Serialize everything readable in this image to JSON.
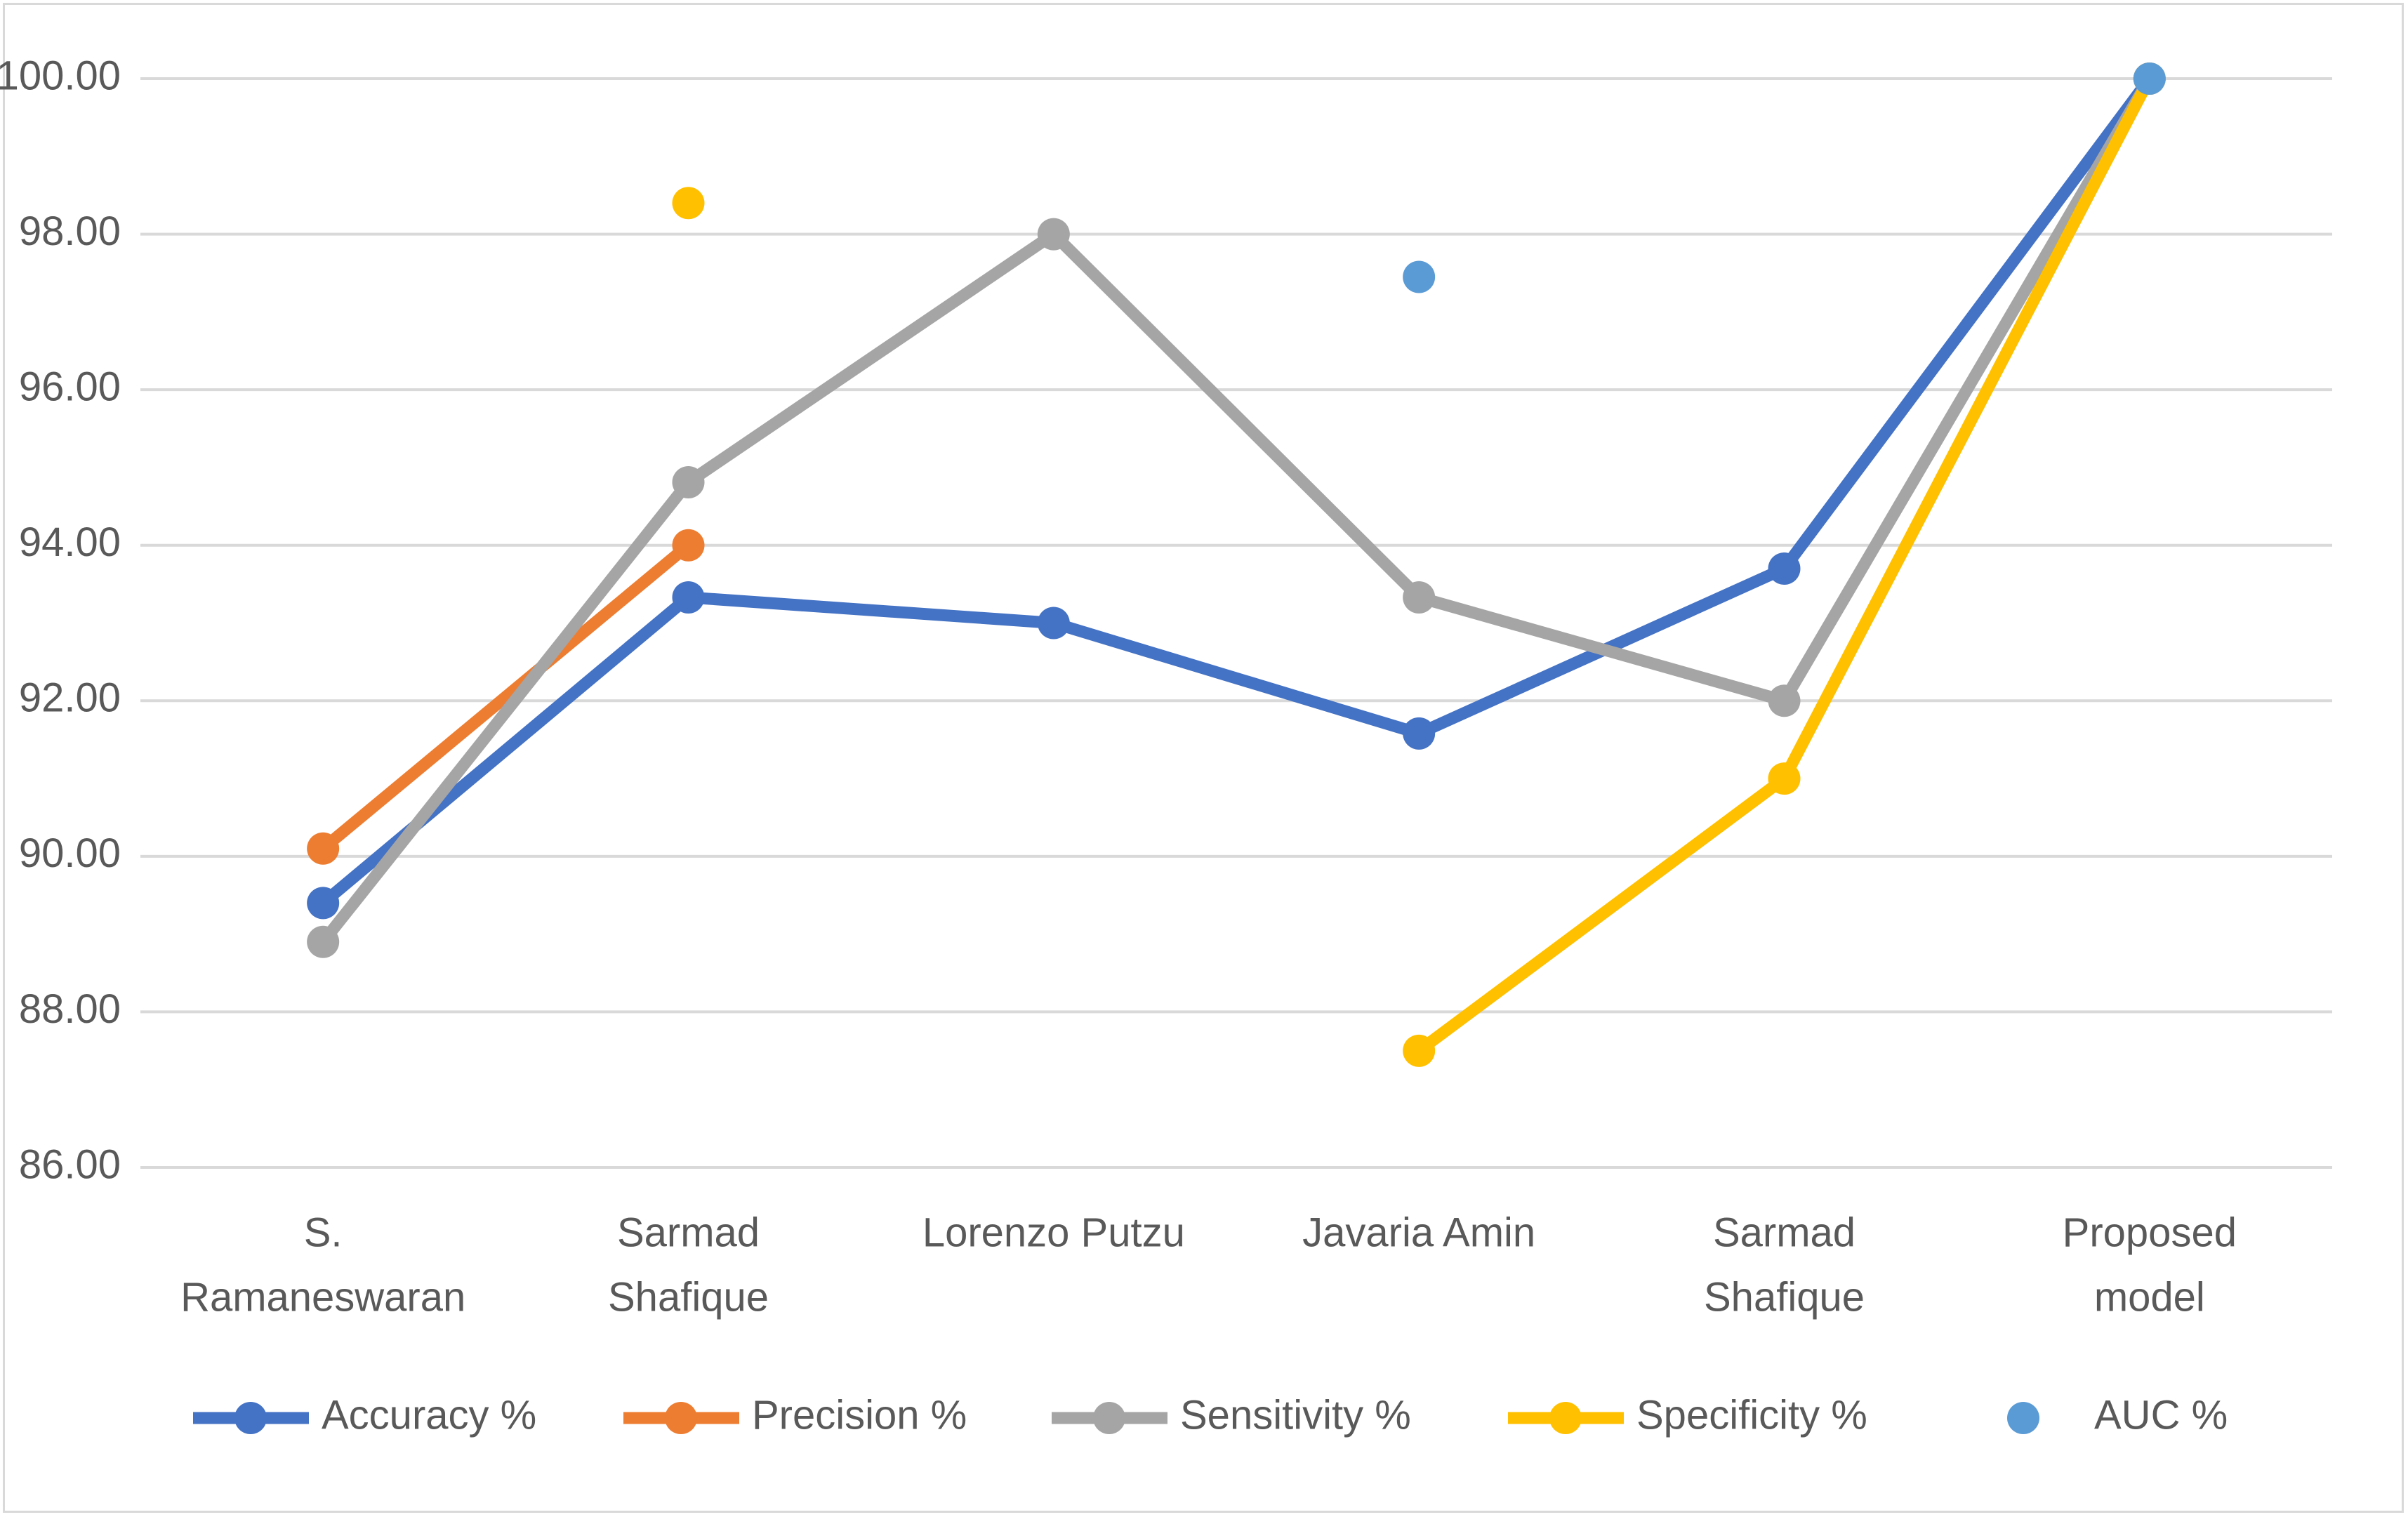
{
  "chart_data": {
    "type": "line",
    "title": "",
    "xlabel": "",
    "ylabel": "",
    "ylim": [
      86,
      100
    ],
    "yticks": [
      86,
      88,
      90,
      92,
      94,
      96,
      98,
      100
    ],
    "ytick_labels": [
      "86.00",
      "88.00",
      "90.00",
      "92.00",
      "94.00",
      "96.00",
      "98.00",
      "100.00"
    ],
    "grid": true,
    "legend_position": "bottom",
    "categories": [
      [
        "S.",
        "Ramaneswaran"
      ],
      [
        "Sarmad",
        "Shafique"
      ],
      [
        "Lorenzo Putzu"
      ],
      [
        "Javaria Amin"
      ],
      [
        "Sarmad",
        "Shafique"
      ],
      [
        "Proposed",
        "model"
      ]
    ],
    "series": [
      {
        "name": "Accuracy %",
        "color": "#4472C4",
        "values": [
          89.4,
          93.33,
          93.0,
          91.58,
          93.7,
          100.0
        ]
      },
      {
        "name": "Precision %",
        "color": "#ED7D31",
        "values": [
          90.1,
          94.0,
          null,
          null,
          null,
          null
        ]
      },
      {
        "name": "Sensitivity %",
        "color": "#A5A5A5",
        "values": [
          88.9,
          94.81,
          98.0,
          93.33,
          92.0,
          100.0
        ]
      },
      {
        "name": "Specificity %",
        "color": "#FFC000",
        "values": [
          null,
          98.4,
          null,
          87.5,
          91.0,
          100.0
        ]
      },
      {
        "name": "AUC %",
        "color": "#5B9BD5",
        "values": [
          null,
          null,
          null,
          97.45,
          null,
          100.0
        ]
      }
    ]
  }
}
